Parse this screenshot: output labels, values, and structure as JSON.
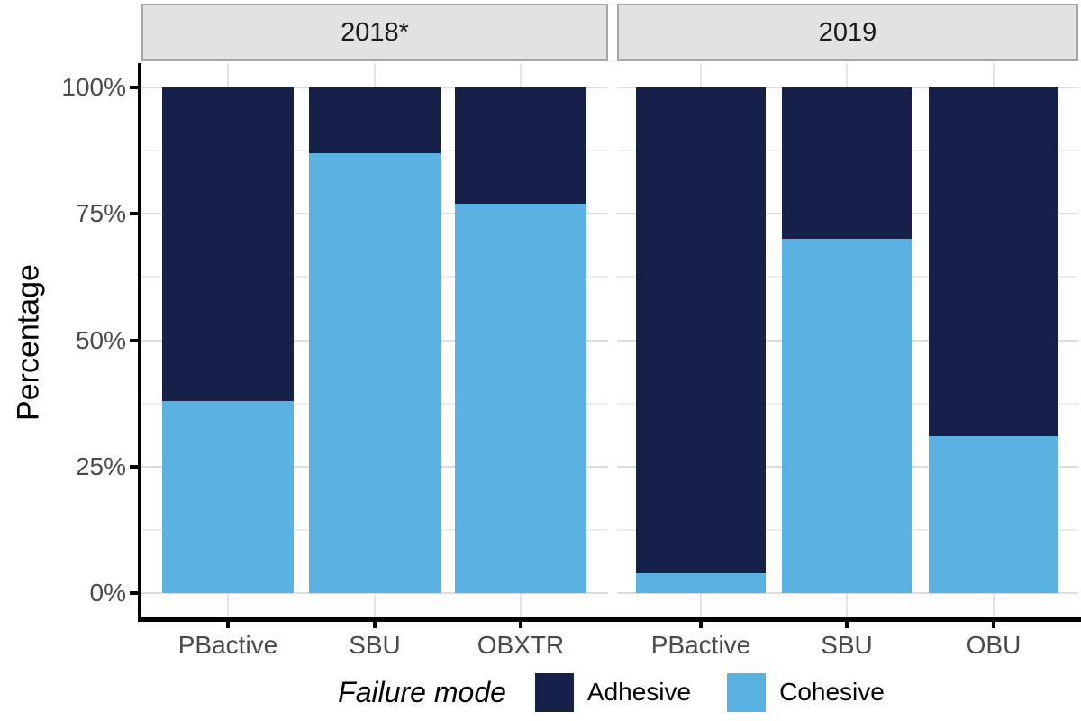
{
  "chart_data": {
    "type": "bar",
    "stacked": true,
    "normalized": "percent",
    "ylabel": "Percentage",
    "y_ticks": [
      "100%",
      "75%",
      "50%",
      "25%",
      "0%"
    ],
    "y_tick_values": [
      100,
      75,
      50,
      25,
      0
    ],
    "ylim": [
      0,
      100
    ],
    "grid": "on",
    "legend_position": "bottom",
    "legend_title": "Failure mode",
    "legend": [
      "Adhesive",
      "Cohesive"
    ],
    "colors": {
      "adhesive": "#16214a",
      "cohesive": "#5ab2e3"
    },
    "facets": [
      {
        "label": "2018*",
        "categories": [
          "PBactive",
          "SBU",
          "OBXTR"
        ],
        "series": [
          {
            "name": "Adhesive",
            "values": [
              62,
              13,
              23
            ]
          },
          {
            "name": "Cohesive",
            "values": [
              38,
              87,
              77
            ]
          }
        ]
      },
      {
        "label": "2019",
        "categories": [
          "PBactive",
          "SBU",
          "OBU"
        ],
        "series": [
          {
            "name": "Adhesive",
            "values": [
              96,
              30,
              69
            ]
          },
          {
            "name": "Cohesive",
            "values": [
              4,
              70,
              31
            ]
          }
        ]
      }
    ]
  },
  "style_colors": {
    "strip_background": "#e2e2e2",
    "strip_border": "#a6a6a6",
    "axis_text": "#4a4a4a",
    "axis_line": "#000000",
    "major_grid": "#dcdcdc",
    "minor_grid": "#ececec"
  }
}
